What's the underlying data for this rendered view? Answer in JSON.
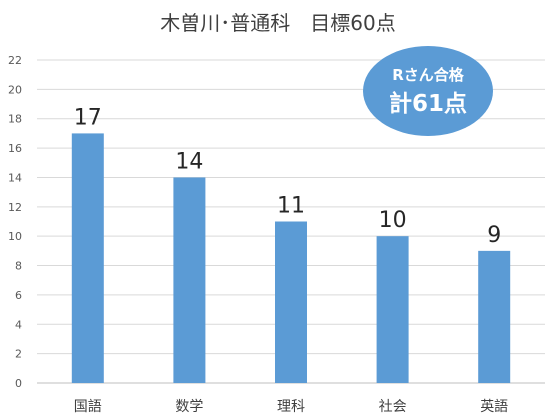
{
  "chart_data": {
    "type": "bar",
    "title": "木曽川･普通科　目標60点",
    "categories": [
      "国語",
      "数学",
      "理科",
      "社会",
      "英語"
    ],
    "values": [
      17,
      14,
      11,
      10,
      9
    ],
    "ylim": [
      0,
      22
    ],
    "yticks": [
      0,
      2,
      4,
      6,
      8,
      10,
      12,
      14,
      16,
      18,
      20,
      22
    ],
    "grid": true,
    "bar_color": "#5b9bd5",
    "annotation": {
      "line1": "Rさん合格",
      "line2": "計61点",
      "color": "#5b9bd5"
    }
  }
}
